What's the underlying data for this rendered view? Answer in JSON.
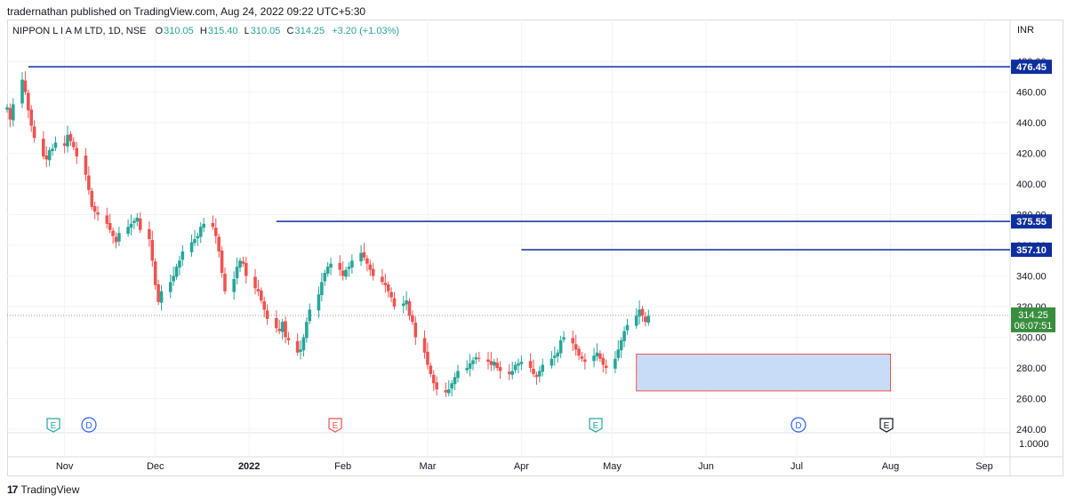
{
  "publisher": "tradernathan published on TradingView.com, Aug 24, 2022 09:22 UTC+5:30",
  "symbol": {
    "name": "NIPPON L I A M LTD, 1D, NSE",
    "o_label": "O",
    "o": "310.05",
    "h_label": "H",
    "h": "315.40",
    "l_label": "L",
    "l": "310.05",
    "c_label": "C",
    "c": "314.25",
    "change": "+3.20 (+1.03%)"
  },
  "currency": "INR",
  "footer": {
    "brand": "TradingView",
    "logo_mark": "17"
  },
  "colors": {
    "up": "#26a69a",
    "down": "#ef5350",
    "line": "#0d2f9e",
    "box_fill": "#c9dcf7",
    "box_border": "#ef5350",
    "last_price_bg": "#388e3c"
  },
  "price_axis": {
    "ticks": [
      240,
      260,
      280,
      300,
      320,
      340,
      360,
      380,
      400,
      420,
      440,
      460,
      480
    ],
    "tick_labels": [
      "240.00",
      "260.00",
      "280.00",
      "300.00",
      "320.00",
      "340.00",
      "360.00",
      "380.00",
      "400.00",
      "420.00",
      "440.00",
      "460.00",
      "480.00"
    ],
    "volume_scale_label": "1.0000"
  },
  "time_axis": [
    "Nov",
    "Dec",
    "2022",
    "Feb",
    "Mar",
    "Apr",
    "May",
    "Jun",
    "Jul",
    "Aug",
    "Sep"
  ],
  "last_price": {
    "value": 314.25,
    "label": "314.25",
    "countdown": "06:07:51"
  },
  "event_markers": [
    {
      "letter": "E",
      "kind": "earnings-positive",
      "month": "Oct"
    },
    {
      "letter": "D",
      "kind": "dividend",
      "month": "Oct"
    },
    {
      "letter": "E",
      "kind": "earnings-negative",
      "month": "Jan"
    },
    {
      "letter": "E",
      "kind": "earnings-positive",
      "month": "Apr"
    },
    {
      "letter": "D",
      "kind": "dividend",
      "month": "Jun"
    },
    {
      "letter": "E",
      "kind": "earnings-future",
      "month": "Jul"
    }
  ],
  "chart_data": {
    "type": "candlestick",
    "title": "",
    "xlabel": "",
    "ylabel": "",
    "ylim": [
      237,
      484
    ],
    "x_range": [
      "2021-10-13",
      "2022-09-06"
    ],
    "grid": true,
    "horizontal_lines": [
      {
        "value": 476.45,
        "label": "476.45",
        "start": "2021-10-20"
      },
      {
        "value": 375.55,
        "label": "375.55",
        "start": "2022-01-10"
      },
      {
        "value": 357.1,
        "label": "357.10",
        "start": "2022-04-01"
      }
    ],
    "rectangle": {
      "start": "2022-05-09",
      "end": "2022-08-01",
      "top": 289,
      "bottom": 265
    },
    "closes": [
      450,
      442,
      452,
      468,
      460,
      448,
      438,
      430,
      418,
      416,
      422,
      423,
      427,
      425,
      432,
      428,
      424,
      418,
      406,
      396,
      385,
      382,
      380,
      374,
      370,
      366,
      362,
      368,
      372,
      374,
      376,
      378,
      370,
      364,
      350,
      334,
      323,
      330,
      336,
      340,
      346,
      350,
      356,
      362,
      364,
      366,
      372,
      374,
      372,
      366,
      356,
      342,
      330,
      338,
      346,
      350,
      348,
      340,
      332,
      330,
      324,
      318,
      312,
      306,
      304,
      310,
      300,
      298,
      290,
      292,
      300,
      310,
      318,
      328,
      336,
      342,
      346,
      348,
      344,
      340,
      344,
      346,
      350,
      355,
      352,
      348,
      344,
      340,
      336,
      334,
      330,
      326,
      320,
      322,
      324,
      314,
      310,
      300,
      290,
      282,
      276,
      270,
      266,
      264,
      266,
      270,
      274,
      278,
      280,
      283,
      285,
      287,
      286,
      284,
      282,
      284,
      280,
      278,
      276,
      278,
      282,
      283,
      284,
      280,
      276,
      274,
      278,
      282,
      286,
      288,
      290,
      298,
      300,
      296,
      292,
      288,
      286,
      284,
      288,
      290,
      286,
      282,
      280,
      286,
      292,
      298,
      304,
      308,
      314,
      318,
      314,
      310,
      314
    ],
    "points_note": "daily closes, one per trading day from 2021-10-13 to 2022-08-24"
  }
}
